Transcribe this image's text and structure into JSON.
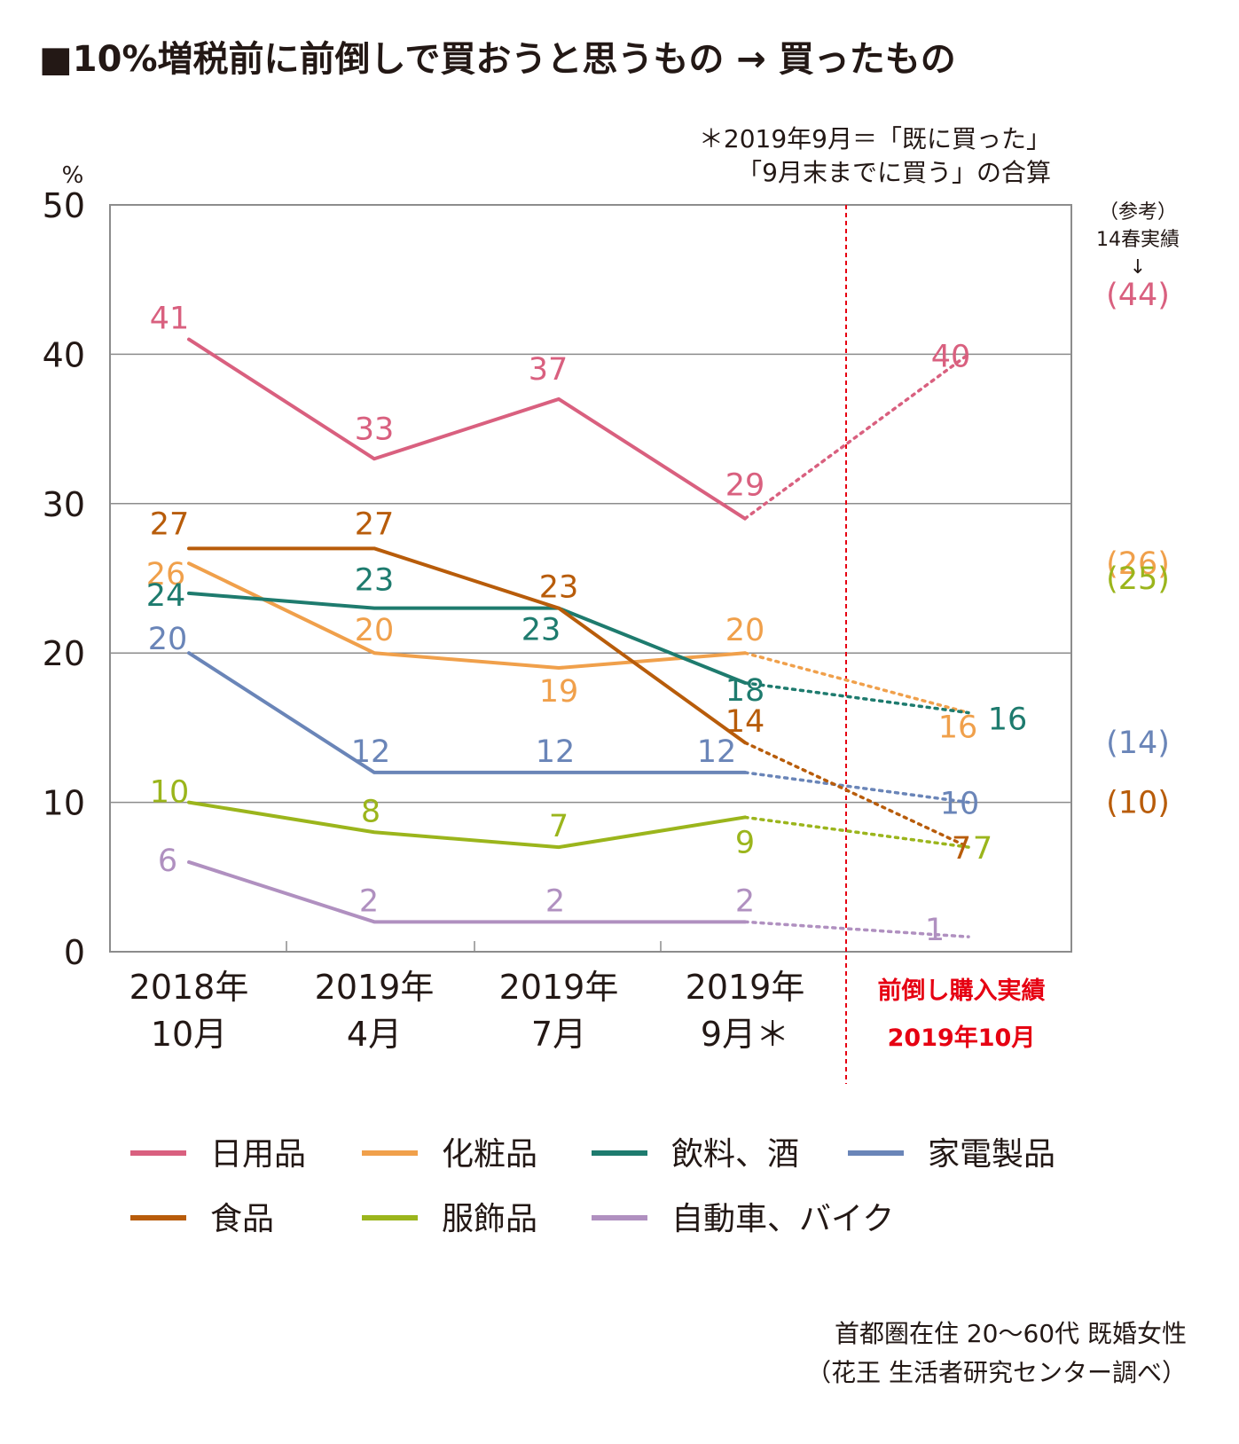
{
  "title": "■10%増税前に前倒しで買おうと思うもの → 買ったもの",
  "note": {
    "line1": "＊2019年9月＝「既に買った」",
    "line2": "「9月末までに買う」の合算"
  },
  "reference": {
    "line1": "（参考）",
    "line2": "14春実績",
    "arrow": "↓",
    "values": [
      {
        "series": "日用品",
        "text": "(44)",
        "value": 44
      },
      {
        "series": "化粧品",
        "text": "(26)",
        "value": 26
      },
      {
        "series": "家電製品",
        "text": "(14)",
        "value": 14
      },
      {
        "series": "食品",
        "text": "(10)",
        "value": 10
      },
      {
        "series": "服飾品",
        "text": "(25)",
        "value": 25
      }
    ]
  },
  "source": {
    "line1": "首都圏在住 20〜60代 既婚女性",
    "line2": "（花王 生活者研究センター調べ）"
  },
  "chart_data": {
    "type": "line",
    "ylabel": "%",
    "ylim": [
      0,
      50
    ],
    "yticks": [
      0,
      10,
      20,
      30,
      40,
      50
    ],
    "grid": true,
    "categories": [
      {
        "line1": "2018年",
        "line2": "10月"
      },
      {
        "line1": "2019年",
        "line2": "4月"
      },
      {
        "line1": "2019年",
        "line2": "7月"
      },
      {
        "line1": "2019年",
        "line2": "9月＊"
      }
    ],
    "actual_category": {
      "line1": "前倒し購入実績",
      "line2": "2019年10月",
      "color": "#e60012"
    },
    "series": [
      {
        "name": "日用品",
        "color": "#d9607f",
        "values": [
          41,
          33,
          37,
          29
        ],
        "actual": 40
      },
      {
        "name": "化粧品",
        "color": "#f0a04b",
        "values": [
          26,
          20,
          19,
          20
        ],
        "actual": 16
      },
      {
        "name": "飲料、酒",
        "color": "#1e7b6e",
        "values": [
          24,
          23,
          23,
          18
        ],
        "actual": 16
      },
      {
        "name": "家電製品",
        "color": "#6a85b8",
        "values": [
          20,
          12,
          12,
          12
        ],
        "actual": 10
      },
      {
        "name": "食品",
        "color": "#b85c0a",
        "values": [
          27,
          27,
          23,
          14
        ],
        "actual": 7
      },
      {
        "name": "服飾品",
        "color": "#9bb51c",
        "values": [
          10,
          8,
          7,
          9
        ],
        "actual": 7
      },
      {
        "name": "自動車、バイク",
        "color": "#b090c0",
        "values": [
          6,
          2,
          2,
          2
        ],
        "actual": 1
      }
    ]
  }
}
